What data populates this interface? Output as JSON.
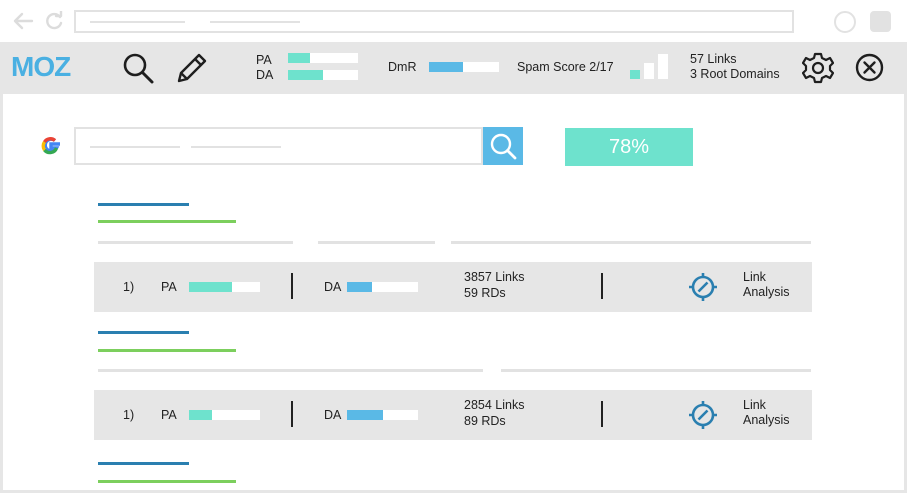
{
  "toolbar": {
    "brand": "MOZ",
    "pa_label": "PA",
    "da_label": "DA",
    "pa_progress": 0.32,
    "da_progress": 0.5,
    "dmr_label": "DmR",
    "dmr_progress": 0.48,
    "spam_label": "Spam Score 2/17",
    "links": "57 Links",
    "root_domains": "3 Root Domains",
    "icons": [
      "search-icon",
      "pencil-icon",
      "signal-bars-icon",
      "gear-icon",
      "close-icon"
    ]
  },
  "search": {
    "score": "78%"
  },
  "results": [
    {
      "rank": "1)",
      "pa_label": "PA",
      "pa_progress": 0.6,
      "da_label": "DA",
      "da_progress": 0.35,
      "links": "3857 Links",
      "rds": "59 RDs",
      "action_line1": "Link",
      "action_line2": "Analysis"
    },
    {
      "rank": "1)",
      "pa_label": "PA",
      "pa_progress": 0.33,
      "da_label": "DA",
      "da_progress": 0.5,
      "links": "2854 Links",
      "rds": "89 RDs",
      "action_line1": "Link",
      "action_line2": "Analysis"
    }
  ],
  "colors": {
    "teal": "#6ee2cd",
    "blue": "#5ab9e6",
    "dark_blue": "#2a7fb0",
    "green": "#7ccf5d",
    "moz_blue": "#4ab0e2"
  }
}
